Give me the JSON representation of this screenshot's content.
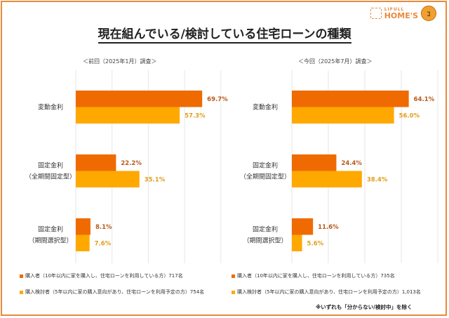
{
  "title": "現在組んでいる/検討している住宅ローンの種類",
  "logo": {
    "line1": "LIFULL",
    "line2": "HOME'S",
    "mascot": "😊"
  },
  "colors": {
    "purchaser": "#ef6a00",
    "considering": "#ffa800",
    "frame": "#e98a3c",
    "grid": "#e6e6e6"
  },
  "chart_data": [
    {
      "type": "bar",
      "orientation": "horizontal",
      "title": "＜前回（2025年1月）調査＞",
      "categories": [
        "変動金利",
        "固定金利（全期間固定型）",
        "固定金利（期間選択型）"
      ],
      "category_lines": [
        [
          "変動金利"
        ],
        [
          "固定金利",
          "（全期間固定型）"
        ],
        [
          "固定金利",
          "（期間選択型）"
        ]
      ],
      "series": [
        {
          "name": "購入者（10年以内に家を購入し、住宅ローンを利用している方）717名",
          "values": [
            69.7,
            22.2,
            8.1
          ]
        },
        {
          "name": "購入検討者（5年以内に家の購入意向があり、住宅ローンを利用予定の方）754名",
          "values": [
            57.3,
            35.1,
            7.6
          ]
        }
      ],
      "value_suffix": "%",
      "xlim": [
        0,
        80
      ],
      "grid": true,
      "legend": "bottom-left"
    },
    {
      "type": "bar",
      "orientation": "horizontal",
      "title": "＜今回（2025年7月）調査＞",
      "categories": [
        "変動金利",
        "固定金利（全期間固定型）",
        "固定金利（期間選択型）"
      ],
      "category_lines": [
        [
          "変動金利"
        ],
        [
          "固定金利",
          "（全期間固定型）"
        ],
        [
          "固定金利",
          "（期間選択型）"
        ]
      ],
      "series": [
        {
          "name": "購入者（10年以内に家を購入し、住宅ローンを利用している方）735名",
          "values": [
            64.1,
            24.4,
            11.6
          ]
        },
        {
          "name": "購入検討者（5年以内に家の購入意向があり、住宅ローンを利用予定の方）1,013名",
          "values": [
            56.0,
            38.4,
            5.6
          ]
        }
      ],
      "value_suffix": "%",
      "xlim": [
        0,
        80
      ],
      "grid": true,
      "legend": "bottom-right"
    }
  ],
  "note": "※いずれも「分からない/検討中」を除く"
}
